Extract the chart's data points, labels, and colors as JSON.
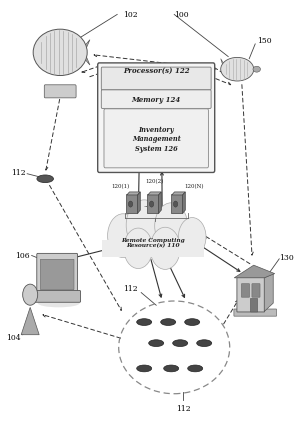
{
  "bg_color": "#ffffff",
  "fig_width": 3.06,
  "fig_height": 4.27,
  "dpi": 100,
  "labels": {
    "processor": "Processor(s) 122",
    "memory": "Memory 124",
    "ims": "Inventory\nManagement\nSystem 126",
    "remote": "Remote Computing\nResource(s) 110",
    "ref_100": "100",
    "ref_102": "102",
    "ref_104": "104",
    "ref_106": "106",
    "ref_112a": "112",
    "ref_112b": "112",
    "ref_112c": "112",
    "ref_120_1": "120(1)",
    "ref_120_2": "120(2)",
    "ref_120_N": "120(N)",
    "ref_130": "130",
    "ref_150": "150"
  }
}
